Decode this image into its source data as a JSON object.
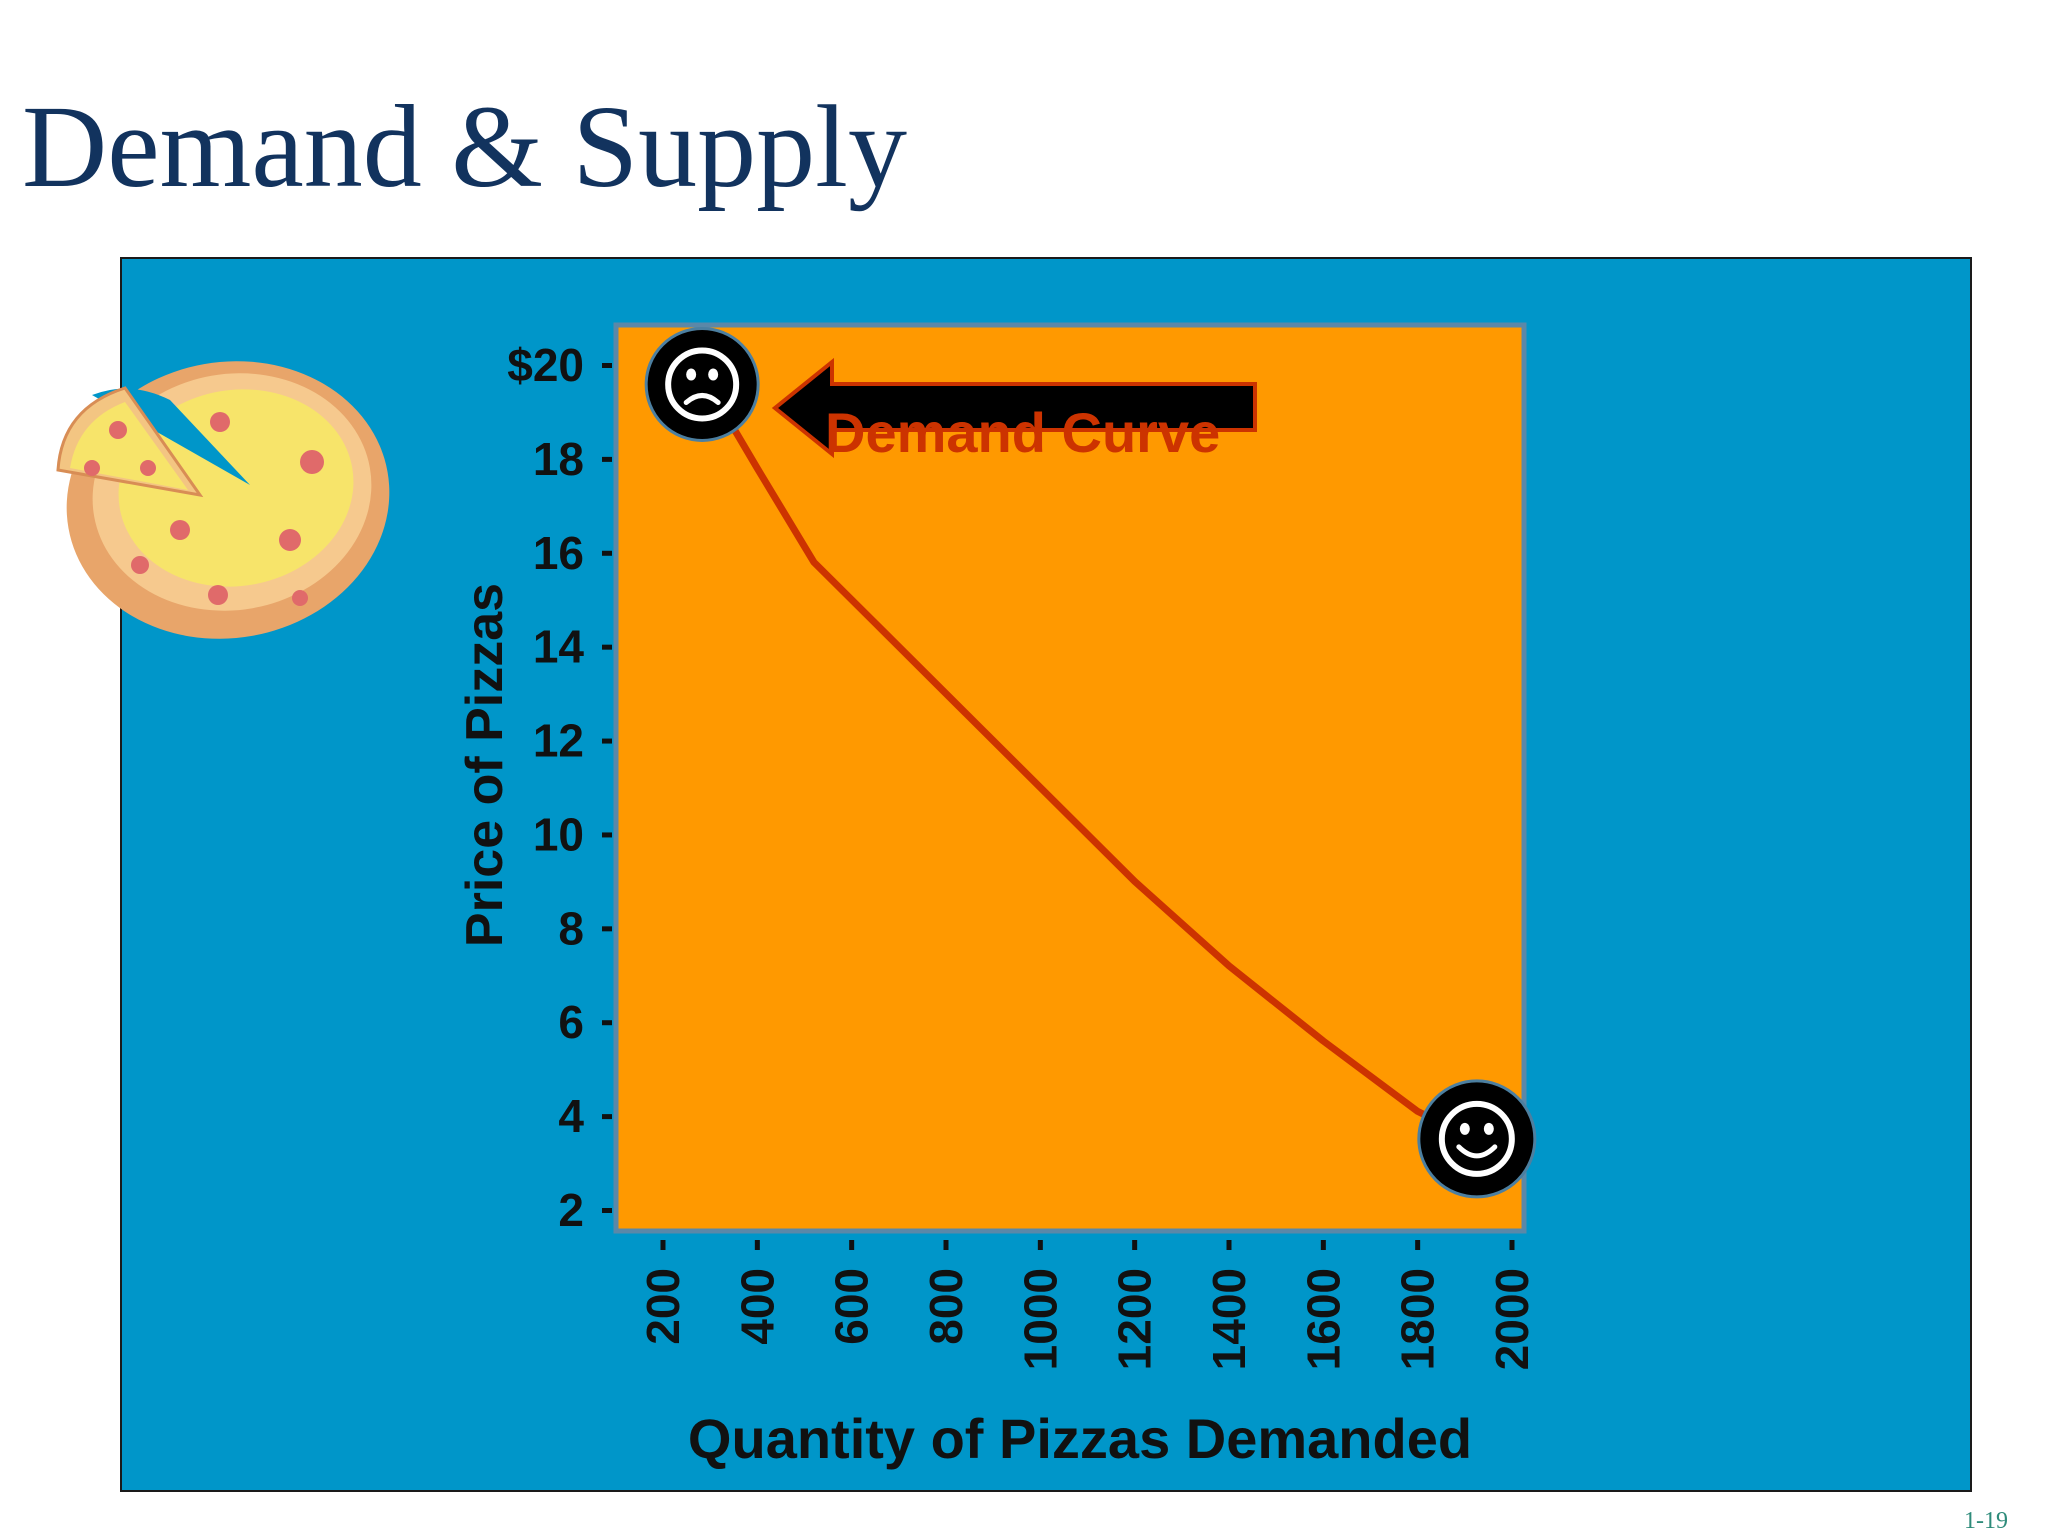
{
  "slide": {
    "title": "Demand & Supply",
    "number": "1-19"
  },
  "colors": {
    "title": "#12335e",
    "panel_background": "#0096c9",
    "plot_background": "#ff9900",
    "curve": "#cc3300",
    "arrow": "#000000"
  },
  "pizza_icon": "pizza-icon",
  "chart_data": {
    "type": "line",
    "xlabel": "Quantity of Pizzas Demanded",
    "ylabel": "Price of Pizzas",
    "x_ticks": [
      "200",
      "400",
      "600",
      "800",
      "1000",
      "1200",
      "1400",
      "1600",
      "1800",
      "2000"
    ],
    "y_ticks": [
      "$20",
      "18",
      "16",
      "14",
      "12",
      "10",
      "8",
      "6",
      "4",
      "2"
    ],
    "xlim": [
      100,
      2030
    ],
    "ylim": [
      2,
      20.8
    ],
    "grid": false,
    "series": [
      {
        "x": [
          300,
          400,
          520,
          650,
          800,
          1000,
          1200,
          1400,
          1600,
          1800,
          1900
        ],
        "y": [
          19.5,
          17.8,
          15.8,
          14.5,
          13.0,
          11.0,
          9.0,
          7.2,
          5.6,
          4.1,
          3.6
        ]
      }
    ],
    "annotations": [
      {
        "text": "Demand Curve",
        "type": "arrow-label"
      },
      {
        "icon": "frown-face-icon",
        "x": 300,
        "y": 19.5
      },
      {
        "icon": "smile-face-icon",
        "x": 1900,
        "y": 3.6
      }
    ]
  }
}
